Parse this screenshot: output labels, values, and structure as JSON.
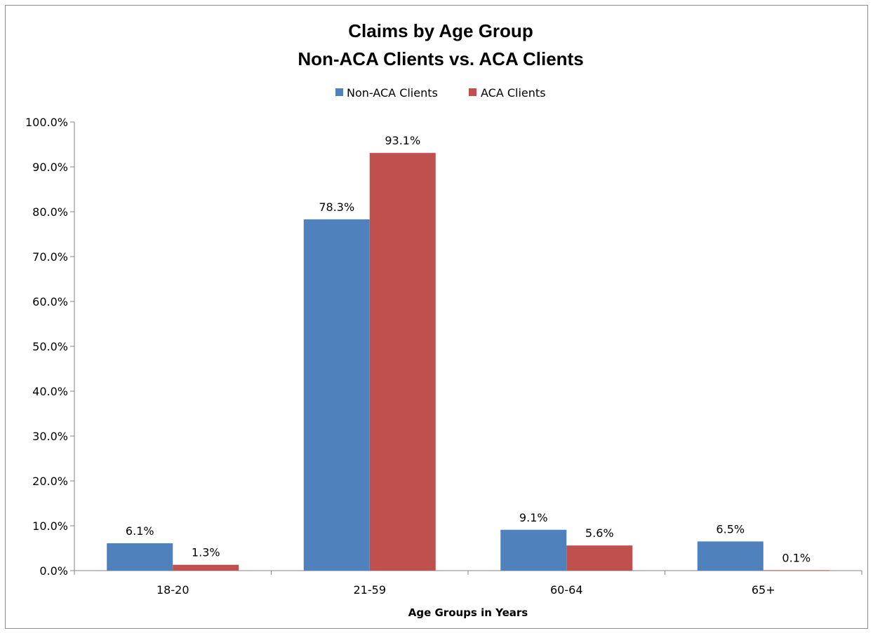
{
  "chart_data": {
    "type": "bar",
    "title_lines": [
      "Claims by Age Group",
      "Non-ACA Clients vs. ACA Clients"
    ],
    "categories": [
      "18-20",
      "21-59",
      "60-64",
      "65+"
    ],
    "series": [
      {
        "name": "Non-ACA Clients",
        "color": "#4f81bd",
        "values": [
          6.1,
          78.3,
          9.1,
          6.5
        ],
        "labels": [
          "6.1%",
          "78.3%",
          "9.1%",
          "6.5%"
        ]
      },
      {
        "name": "ACA Clients",
        "color": "#c0504d",
        "values": [
          1.3,
          93.1,
          5.6,
          0.1
        ],
        "labels": [
          "1.3%",
          "93.1%",
          "5.6%",
          "0.1%"
        ]
      }
    ],
    "xlabel": "Age Groups in Years",
    "ylabel": "",
    "ylim": [
      0,
      100
    ],
    "yticks": [
      0,
      10,
      20,
      30,
      40,
      50,
      60,
      70,
      80,
      90,
      100
    ],
    "ytick_labels": [
      "0.0%",
      "10.0%",
      "20.0%",
      "30.0%",
      "40.0%",
      "50.0%",
      "60.0%",
      "70.0%",
      "80.0%",
      "90.0%",
      "100.0%"
    ],
    "grid": false,
    "legend_position": "top-center"
  }
}
